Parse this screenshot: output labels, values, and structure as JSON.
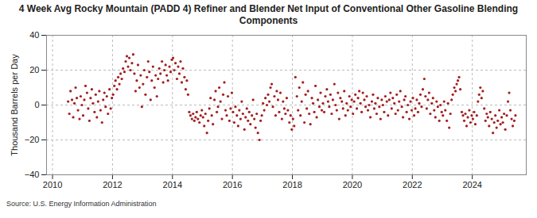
{
  "chart_data": {
    "type": "scatter",
    "title": "4 Week Avg Rocky Mountain (PADD 4) Refiner and Blender Net Input of Conventional Other Gasoline Blending Components",
    "ylabel": "Thousand Barrels per Day",
    "source": "Source: U.S. Energy Information Administration",
    "color": "#a31f1f",
    "marker": "circle",
    "grid": true,
    "xlim": [
      2009.8,
      2025.8
    ],
    "xticks": [
      2010,
      2012,
      2014,
      2016,
      2018,
      2020,
      2022,
      2024
    ],
    "ylim": [
      -40,
      40
    ],
    "yticks": [
      -40,
      -20,
      0,
      20,
      40
    ],
    "x": [
      2010.52,
      2010.56,
      2010.6,
      2010.65,
      2010.69,
      2010.73,
      2010.77,
      2010.81,
      2010.85,
      2010.9,
      2010.94,
      2010.98,
      2011.02,
      2011.06,
      2011.1,
      2011.15,
      2011.19,
      2011.23,
      2011.27,
      2011.31,
      2011.35,
      2011.4,
      2011.44,
      2011.48,
      2011.52,
      2011.56,
      2011.6,
      2011.65,
      2011.69,
      2011.73,
      2011.77,
      2011.81,
      2011.85,
      2011.9,
      2011.94,
      2011.98,
      2012.02,
      2012.06,
      2012.1,
      2012.15,
      2012.19,
      2012.23,
      2012.27,
      2012.31,
      2012.35,
      2012.4,
      2012.44,
      2012.48,
      2012.52,
      2012.56,
      2012.6,
      2012.65,
      2012.69,
      2012.73,
      2012.77,
      2012.81,
      2012.85,
      2012.9,
      2012.94,
      2012.98,
      2013.02,
      2013.06,
      2013.1,
      2013.15,
      2013.19,
      2013.23,
      2013.27,
      2013.31,
      2013.35,
      2013.4,
      2013.44,
      2013.48,
      2013.52,
      2013.56,
      2013.6,
      2013.65,
      2013.69,
      2013.73,
      2013.77,
      2013.81,
      2013.85,
      2013.9,
      2013.94,
      2013.98,
      2014.02,
      2014.06,
      2014.1,
      2014.15,
      2014.19,
      2014.23,
      2014.27,
      2014.31,
      2014.35,
      2014.4,
      2014.44,
      2014.48,
      2014.52,
      2014.56,
      2014.6,
      2014.65,
      2014.69,
      2014.73,
      2014.77,
      2014.81,
      2014.85,
      2014.9,
      2014.94,
      2014.98,
      2015.02,
      2015.06,
      2015.1,
      2015.15,
      2015.19,
      2015.23,
      2015.27,
      2015.31,
      2015.35,
      2015.4,
      2015.44,
      2015.48,
      2015.52,
      2015.56,
      2015.6,
      2015.65,
      2015.69,
      2015.73,
      2015.77,
      2015.81,
      2015.85,
      2015.9,
      2015.94,
      2015.98,
      2016.02,
      2016.06,
      2016.1,
      2016.15,
      2016.19,
      2016.23,
      2016.27,
      2016.31,
      2016.35,
      2016.4,
      2016.44,
      2016.48,
      2016.52,
      2016.56,
      2016.6,
      2016.65,
      2016.69,
      2016.73,
      2016.77,
      2016.81,
      2016.85,
      2016.9,
      2016.94,
      2016.98,
      2017.02,
      2017.06,
      2017.1,
      2017.15,
      2017.19,
      2017.23,
      2017.27,
      2017.31,
      2017.35,
      2017.4,
      2017.44,
      2017.48,
      2017.52,
      2017.56,
      2017.6,
      2017.65,
      2017.69,
      2017.73,
      2017.77,
      2017.81,
      2017.85,
      2017.9,
      2017.94,
      2017.98,
      2018.02,
      2018.06,
      2018.1,
      2018.15,
      2018.19,
      2018.23,
      2018.27,
      2018.31,
      2018.35,
      2018.4,
      2018.44,
      2018.48,
      2018.52,
      2018.56,
      2018.6,
      2018.65,
      2018.69,
      2018.73,
      2018.77,
      2018.81,
      2018.85,
      2018.9,
      2018.94,
      2018.98,
      2019.02,
      2019.06,
      2019.1,
      2019.15,
      2019.19,
      2019.23,
      2019.27,
      2019.31,
      2019.35,
      2019.4,
      2019.44,
      2019.48,
      2019.52,
      2019.56,
      2019.6,
      2019.65,
      2019.69,
      2019.73,
      2019.77,
      2019.81,
      2019.85,
      2019.9,
      2019.94,
      2019.98,
      2020.02,
      2020.06,
      2020.1,
      2020.15,
      2020.19,
      2020.23,
      2020.27,
      2020.31,
      2020.35,
      2020.4,
      2020.44,
      2020.48,
      2020.52,
      2020.56,
      2020.6,
      2020.65,
      2020.69,
      2020.73,
      2020.77,
      2020.81,
      2020.85,
      2020.9,
      2020.94,
      2020.98,
      2021.02,
      2021.06,
      2021.1,
      2021.15,
      2021.19,
      2021.23,
      2021.27,
      2021.31,
      2021.35,
      2021.4,
      2021.44,
      2021.48,
      2021.52,
      2021.56,
      2021.6,
      2021.65,
      2021.69,
      2021.73,
      2021.77,
      2021.81,
      2021.85,
      2021.9,
      2021.94,
      2021.98,
      2022.02,
      2022.06,
      2022.1,
      2022.15,
      2022.19,
      2022.23,
      2022.27,
      2022.31,
      2022.35,
      2022.4,
      2022.44,
      2022.48,
      2022.52,
      2022.56,
      2022.6,
      2022.65,
      2022.69,
      2022.73,
      2022.77,
      2022.81,
      2022.85,
      2022.9,
      2022.94,
      2022.98,
      2023.02,
      2023.06,
      2023.1,
      2023.15,
      2023.19,
      2023.23,
      2023.27,
      2023.31,
      2023.35,
      2023.4,
      2023.44,
      2023.48,
      2023.52,
      2023.56,
      2023.6,
      2023.65,
      2023.69,
      2023.73,
      2023.77,
      2023.81,
      2023.85,
      2023.9,
      2023.94,
      2023.98,
      2024.02,
      2024.06,
      2024.1,
      2024.15,
      2024.19,
      2024.23,
      2024.27,
      2024.31,
      2024.35,
      2024.4,
      2024.44,
      2024.48,
      2024.52,
      2024.56,
      2024.6,
      2024.65,
      2024.69,
      2024.73,
      2024.77,
      2024.81,
      2024.85,
      2024.9,
      2024.94,
      2024.98,
      2025.02,
      2025.06,
      2025.1,
      2025.15,
      2025.19,
      2025.23,
      2025.27,
      2025.31,
      2025.35,
      2025.4,
      2025.44
    ],
    "values": [
      2,
      -5,
      8,
      3,
      -7,
      1,
      10,
      4,
      -3,
      -8,
      5,
      0,
      -6,
      3,
      11,
      7,
      -2,
      -9,
      4,
      9,
      1,
      -4,
      6,
      -7,
      2,
      8,
      -3,
      -10,
      3,
      7,
      -1,
      5,
      -5,
      9,
      -2,
      4,
      6,
      11,
      14,
      9,
      16,
      12,
      18,
      15,
      21,
      19,
      25,
      28,
      22,
      27,
      20,
      24,
      29,
      18,
      8,
      14,
      23,
      10,
      17,
      -1,
      12,
      20,
      6,
      16,
      25,
      19,
      3,
      14,
      22,
      10,
      17,
      5,
      15,
      21,
      18,
      25,
      13,
      20,
      23,
      17,
      14,
      22,
      19,
      26,
      27,
      20,
      24,
      15,
      22,
      18,
      25,
      13,
      21,
      16,
      9,
      14,
      6,
      -4,
      -6,
      -8,
      -5,
      -9,
      -7,
      -4,
      -8,
      -10,
      -6,
      -3,
      -7,
      -12,
      -5,
      -16,
      -9,
      -2,
      4,
      -6,
      -11,
      3,
      8,
      -4,
      -1,
      10,
      2,
      -8,
      6,
      13,
      -3,
      -6,
      5,
      -9,
      -2,
      7,
      -4,
      -10,
      -1,
      -6,
      -12,
      -3,
      -8,
      2,
      -5,
      -14,
      -7,
      -2,
      -9,
      -4,
      -11,
      -6,
      3,
      -8,
      -13,
      -5,
      -16,
      -20,
      -9,
      -6,
      1,
      -3,
      4,
      0,
      6,
      2,
      10,
      12,
      -1,
      5,
      -6,
      8,
      3,
      -4,
      7,
      -8,
      2,
      -2,
      -5,
      4,
      -3,
      -10,
      -6,
      -14,
      -8,
      -12,
      16,
      5,
      -3,
      10,
      -6,
      2,
      13,
      -10,
      6,
      -2,
      8,
      -5,
      -11,
      4,
      1,
      -4,
      11,
      -7,
      3,
      -1,
      7,
      -3,
      1,
      -4,
      5,
      9,
      2,
      -1,
      6,
      -5,
      3,
      12,
      0,
      -3,
      7,
      -8,
      4,
      2,
      -2,
      8,
      -6,
      1,
      -3,
      5,
      -1,
      3,
      -5,
      2,
      6,
      -2,
      4,
      8,
      1,
      -4,
      7,
      3,
      -1,
      5,
      -3,
      0,
      -7,
      2,
      6,
      -2,
      1,
      -5,
      4,
      -1,
      -8,
      3,
      0,
      -4,
      5,
      2,
      -6,
      3,
      7,
      -2,
      4,
      1,
      -5,
      6,
      -3,
      2,
      8,
      -1,
      -7,
      3,
      5,
      -4,
      0,
      -8,
      2,
      -3,
      4,
      -6,
      -2,
      3,
      -4,
      1,
      6,
      -1,
      9,
      15,
      5,
      -2,
      3,
      7,
      -5,
      1,
      4,
      -3,
      -7,
      2,
      -1,
      -9,
      0,
      -4,
      -6,
      2,
      -3,
      -9,
      1,
      -13,
      -5,
      3,
      6,
      10,
      8,
      12,
      14,
      16,
      9,
      -4,
      -6,
      -9,
      -5,
      -12,
      -7,
      -3,
      -10,
      -6,
      -8,
      -4,
      -11,
      -6,
      2,
      6,
      10,
      4,
      8,
      -2,
      -9,
      -5,
      -7,
      -12,
      -4,
      -8,
      -16,
      -10,
      -6,
      -13,
      -9,
      -3,
      -11,
      -7,
      -10,
      -5,
      -14,
      -6,
      2,
      7,
      -3,
      -8,
      -12,
      -9,
      -6
    ]
  }
}
